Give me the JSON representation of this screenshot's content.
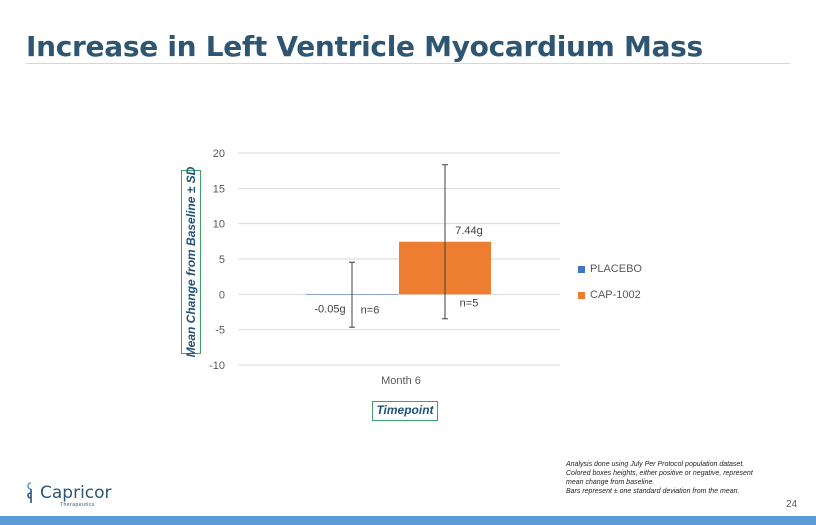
{
  "slide": {
    "title": "Increase in Left Ventricle Myocardium Mass",
    "page_number": "24"
  },
  "footnote": [
    "Analysis done using July Per Protocol  population dataset.",
    "Colored boxes heights, either positive or negative, represent",
    "mean change from baseline.",
    "Bars represent ± one standard deviation from the mean."
  ],
  "logo": {
    "name": "Capricor",
    "tagline": "Therapeutics"
  },
  "chart_data": {
    "type": "bar",
    "categories": [
      "Month 6"
    ],
    "series": [
      {
        "name": "PLACEBO",
        "color": "#4472c4",
        "values": [
          -0.05
        ],
        "error": [
          4.6
        ],
        "value_label": "-0.05g",
        "n_label": "n=6"
      },
      {
        "name": "CAP-1002",
        "color": "#ed7d31",
        "values": [
          7.44
        ],
        "error": [
          10.9
        ],
        "value_label": "7.44g",
        "n_label": "n=5"
      }
    ],
    "ylim": [
      -10,
      20
    ],
    "yticks": [
      20,
      15,
      10,
      5,
      0,
      -5,
      -10
    ],
    "ylabel": "Mean Change from Baseline ± SD",
    "xlabel": "Timepoint",
    "grid": true,
    "legend_position": "right"
  }
}
